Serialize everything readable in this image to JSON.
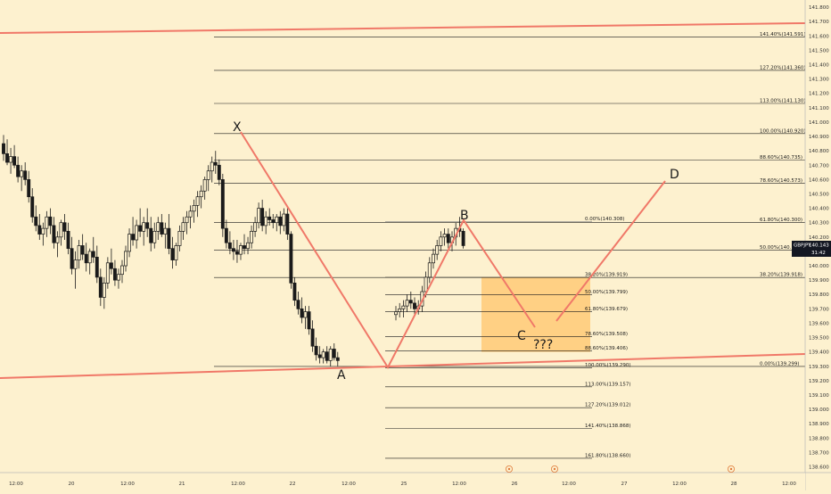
{
  "chart_data": {
    "type": "candlestick",
    "symbol": "GBPJPY",
    "price": {
      "label": "GBPJPY",
      "value": "140.143",
      "countdown": "31:42"
    },
    "y_axis": {
      "min": 138.56,
      "max": 141.85,
      "ticks": [
        "141.800",
        "141.700",
        "141.600",
        "141.500",
        "141.400",
        "141.300",
        "141.200",
        "141.100",
        "141.000",
        "140.900",
        "140.800",
        "140.700",
        "140.600",
        "140.500",
        "140.400",
        "140.300",
        "140.200",
        "140.100",
        "140.000",
        "139.900",
        "139.800",
        "139.700",
        "139.600",
        "139.500",
        "139.400",
        "139.300",
        "139.200",
        "139.100",
        "139.000",
        "138.900",
        "138.800",
        "138.700",
        "138.600"
      ]
    },
    "x_axis": {
      "labels": [
        "12:00",
        "20",
        "12:00",
        "21",
        "12:00",
        "22",
        "12:00",
        "25",
        "12:00",
        "26",
        "12:00",
        "27",
        "12:00",
        "28",
        "12:00"
      ]
    },
    "candles": [
      {
        "o": 140.85,
        "h": 140.91,
        "l": 140.73,
        "c": 140.78
      },
      {
        "o": 140.78,
        "h": 140.88,
        "l": 140.7,
        "c": 140.72
      },
      {
        "o": 140.72,
        "h": 140.82,
        "l": 140.64,
        "c": 140.76
      },
      {
        "o": 140.76,
        "h": 140.84,
        "l": 140.68,
        "c": 140.7
      },
      {
        "o": 140.7,
        "h": 140.76,
        "l": 140.58,
        "c": 140.62
      },
      {
        "o": 140.62,
        "h": 140.7,
        "l": 140.52,
        "c": 140.66
      },
      {
        "o": 140.66,
        "h": 140.72,
        "l": 140.56,
        "c": 140.6
      },
      {
        "o": 140.6,
        "h": 140.66,
        "l": 140.44,
        "c": 140.48
      },
      {
        "o": 140.48,
        "h": 140.54,
        "l": 140.3,
        "c": 140.34
      },
      {
        "o": 140.34,
        "h": 140.42,
        "l": 140.24,
        "c": 140.28
      },
      {
        "o": 140.28,
        "h": 140.36,
        "l": 140.18,
        "c": 140.22
      },
      {
        "o": 140.22,
        "h": 140.3,
        "l": 140.14,
        "c": 140.26
      },
      {
        "o": 140.26,
        "h": 140.38,
        "l": 140.2,
        "c": 140.34
      },
      {
        "o": 140.34,
        "h": 140.4,
        "l": 140.22,
        "c": 140.28
      },
      {
        "o": 140.28,
        "h": 140.34,
        "l": 140.12,
        "c": 140.16
      },
      {
        "o": 140.16,
        "h": 140.24,
        "l": 140.06,
        "c": 140.2
      },
      {
        "o": 140.2,
        "h": 140.32,
        "l": 140.14,
        "c": 140.3
      },
      {
        "o": 140.3,
        "h": 140.36,
        "l": 140.18,
        "c": 140.24
      },
      {
        "o": 140.24,
        "h": 140.3,
        "l": 140.08,
        "c": 140.12
      },
      {
        "o": 140.12,
        "h": 140.2,
        "l": 139.94,
        "c": 139.98
      },
      {
        "o": 139.98,
        "h": 140.1,
        "l": 139.84,
        "c": 140.04
      },
      {
        "o": 140.04,
        "h": 140.18,
        "l": 139.98,
        "c": 140.14
      },
      {
        "o": 140.14,
        "h": 140.22,
        "l": 140.04,
        "c": 140.08
      },
      {
        "o": 140.08,
        "h": 140.16,
        "l": 139.96,
        "c": 140.02
      },
      {
        "o": 140.02,
        "h": 140.12,
        "l": 139.94,
        "c": 140.1
      },
      {
        "o": 140.1,
        "h": 140.2,
        "l": 140.02,
        "c": 140.06
      },
      {
        "o": 140.06,
        "h": 140.14,
        "l": 139.88,
        "c": 139.92
      },
      {
        "o": 139.92,
        "h": 139.98,
        "l": 139.72,
        "c": 139.78
      },
      {
        "o": 139.78,
        "h": 139.92,
        "l": 139.7,
        "c": 139.88
      },
      {
        "o": 139.88,
        "h": 140.06,
        "l": 139.84,
        "c": 140.02
      },
      {
        "o": 140.02,
        "h": 140.12,
        "l": 139.94,
        "c": 139.98
      },
      {
        "o": 139.98,
        "h": 140.04,
        "l": 139.86,
        "c": 139.9
      },
      {
        "o": 139.9,
        "h": 139.98,
        "l": 139.84,
        "c": 139.94
      },
      {
        "o": 139.94,
        "h": 140.04,
        "l": 139.88,
        "c": 140.0
      },
      {
        "o": 140.0,
        "h": 140.14,
        "l": 139.96,
        "c": 140.1
      },
      {
        "o": 140.1,
        "h": 140.26,
        "l": 140.06,
        "c": 140.22
      },
      {
        "o": 140.22,
        "h": 140.34,
        "l": 140.14,
        "c": 140.18
      },
      {
        "o": 140.18,
        "h": 140.32,
        "l": 140.12,
        "c": 140.28
      },
      {
        "o": 140.28,
        "h": 140.4,
        "l": 140.2,
        "c": 140.24
      },
      {
        "o": 140.24,
        "h": 140.34,
        "l": 140.14,
        "c": 140.3
      },
      {
        "o": 140.3,
        "h": 140.4,
        "l": 140.2,
        "c": 140.26
      },
      {
        "o": 140.26,
        "h": 140.34,
        "l": 140.1,
        "c": 140.16
      },
      {
        "o": 140.16,
        "h": 140.3,
        "l": 140.12,
        "c": 140.24
      },
      {
        "o": 140.24,
        "h": 140.34,
        "l": 140.18,
        "c": 140.3
      },
      {
        "o": 140.3,
        "h": 140.36,
        "l": 140.2,
        "c": 140.22
      },
      {
        "o": 140.22,
        "h": 140.3,
        "l": 140.12,
        "c": 140.26
      },
      {
        "o": 140.26,
        "h": 140.36,
        "l": 140.08,
        "c": 140.12
      },
      {
        "o": 140.12,
        "h": 140.2,
        "l": 139.98,
        "c": 140.04
      },
      {
        "o": 140.04,
        "h": 140.16,
        "l": 140.0,
        "c": 140.14
      },
      {
        "o": 140.14,
        "h": 140.28,
        "l": 140.1,
        "c": 140.24
      },
      {
        "o": 140.24,
        "h": 140.34,
        "l": 140.18,
        "c": 140.3
      },
      {
        "o": 140.3,
        "h": 140.38,
        "l": 140.22,
        "c": 140.34
      },
      {
        "o": 140.34,
        "h": 140.42,
        "l": 140.26,
        "c": 140.38
      },
      {
        "o": 140.38,
        "h": 140.46,
        "l": 140.3,
        "c": 140.42
      },
      {
        "o": 140.42,
        "h": 140.52,
        "l": 140.34,
        "c": 140.48
      },
      {
        "o": 140.48,
        "h": 140.56,
        "l": 140.4,
        "c": 140.52
      },
      {
        "o": 140.52,
        "h": 140.62,
        "l": 140.46,
        "c": 140.6
      },
      {
        "o": 140.6,
        "h": 140.7,
        "l": 140.52,
        "c": 140.66
      },
      {
        "o": 140.66,
        "h": 140.76,
        "l": 140.58,
        "c": 140.72
      },
      {
        "o": 140.72,
        "h": 140.8,
        "l": 140.64,
        "c": 140.7
      },
      {
        "o": 140.7,
        "h": 140.74,
        "l": 140.56,
        "c": 140.6
      },
      {
        "o": 140.6,
        "h": 140.64,
        "l": 140.2,
        "c": 140.26
      },
      {
        "o": 140.26,
        "h": 140.32,
        "l": 140.12,
        "c": 140.16
      },
      {
        "o": 140.16,
        "h": 140.24,
        "l": 140.08,
        "c": 140.12
      },
      {
        "o": 140.12,
        "h": 140.18,
        "l": 140.04,
        "c": 140.1
      },
      {
        "o": 140.1,
        "h": 140.18,
        "l": 140.02,
        "c": 140.08
      },
      {
        "o": 140.08,
        "h": 140.16,
        "l": 140.04,
        "c": 140.14
      },
      {
        "o": 140.14,
        "h": 140.22,
        "l": 140.08,
        "c": 140.12
      },
      {
        "o": 140.12,
        "h": 140.2,
        "l": 140.08,
        "c": 140.16
      },
      {
        "o": 140.16,
        "h": 140.28,
        "l": 140.12,
        "c": 140.24
      },
      {
        "o": 140.24,
        "h": 140.34,
        "l": 140.2,
        "c": 140.3
      },
      {
        "o": 140.3,
        "h": 140.44,
        "l": 140.26,
        "c": 140.4
      },
      {
        "o": 140.4,
        "h": 140.46,
        "l": 140.24,
        "c": 140.28
      },
      {
        "o": 140.28,
        "h": 140.38,
        "l": 140.22,
        "c": 140.34
      },
      {
        "o": 140.34,
        "h": 140.4,
        "l": 140.28,
        "c": 140.32
      },
      {
        "o": 140.32,
        "h": 140.36,
        "l": 140.26,
        "c": 140.3
      },
      {
        "o": 140.3,
        "h": 140.36,
        "l": 140.24,
        "c": 140.34
      },
      {
        "o": 140.34,
        "h": 140.38,
        "l": 140.22,
        "c": 140.28
      },
      {
        "o": 140.28,
        "h": 140.4,
        "l": 140.24,
        "c": 140.36
      },
      {
        "o": 140.36,
        "h": 140.4,
        "l": 140.18,
        "c": 140.22
      },
      {
        "o": 140.22,
        "h": 140.24,
        "l": 139.84,
        "c": 139.88
      },
      {
        "o": 139.88,
        "h": 139.92,
        "l": 139.72,
        "c": 139.76
      },
      {
        "o": 139.76,
        "h": 139.82,
        "l": 139.66,
        "c": 139.7
      },
      {
        "o": 139.7,
        "h": 139.78,
        "l": 139.6,
        "c": 139.64
      },
      {
        "o": 139.64,
        "h": 139.72,
        "l": 139.56,
        "c": 139.68
      },
      {
        "o": 139.68,
        "h": 139.72,
        "l": 139.52,
        "c": 139.56
      },
      {
        "o": 139.56,
        "h": 139.62,
        "l": 139.4,
        "c": 139.44
      },
      {
        "o": 139.44,
        "h": 139.5,
        "l": 139.34,
        "c": 139.38
      },
      {
        "o": 139.38,
        "h": 139.44,
        "l": 139.32,
        "c": 139.36
      },
      {
        "o": 139.36,
        "h": 139.42,
        "l": 139.32,
        "c": 139.4
      },
      {
        "o": 139.4,
        "h": 139.44,
        "l": 139.32,
        "c": 139.34
      },
      {
        "o": 139.34,
        "h": 139.44,
        "l": 139.3,
        "c": 139.42
      },
      {
        "o": 139.42,
        "h": 139.46,
        "l": 139.34,
        "c": 139.36
      },
      {
        "o": 139.36,
        "h": 139.4,
        "l": 139.3,
        "c": 139.34
      },
      {
        "o": 139.66,
        "h": 139.72,
        "l": 139.62,
        "c": 139.68
      },
      {
        "o": 139.68,
        "h": 139.74,
        "l": 139.64,
        "c": 139.7
      },
      {
        "o": 139.7,
        "h": 139.76,
        "l": 139.64,
        "c": 139.72
      },
      {
        "o": 139.72,
        "h": 139.8,
        "l": 139.68,
        "c": 139.76
      },
      {
        "o": 139.76,
        "h": 139.82,
        "l": 139.7,
        "c": 139.74
      },
      {
        "o": 139.74,
        "h": 139.78,
        "l": 139.66,
        "c": 139.7
      },
      {
        "o": 139.7,
        "h": 139.76,
        "l": 139.66,
        "c": 139.72
      },
      {
        "o": 139.72,
        "h": 139.86,
        "l": 139.68,
        "c": 139.82
      },
      {
        "o": 139.82,
        "h": 139.96,
        "l": 139.78,
        "c": 139.92
      },
      {
        "o": 139.92,
        "h": 140.06,
        "l": 139.88,
        "c": 140.02
      },
      {
        "o": 140.02,
        "h": 140.12,
        "l": 139.98,
        "c": 140.08
      },
      {
        "o": 140.08,
        "h": 140.18,
        "l": 140.04,
        "c": 140.14
      },
      {
        "o": 140.14,
        "h": 140.24,
        "l": 140.1,
        "c": 140.2
      },
      {
        "o": 140.2,
        "h": 140.26,
        "l": 140.14,
        "c": 140.22
      },
      {
        "o": 140.22,
        "h": 140.26,
        "l": 140.12,
        "c": 140.16
      },
      {
        "o": 140.16,
        "h": 140.24,
        "l": 140.1,
        "c": 140.2
      },
      {
        "o": 140.2,
        "h": 140.3,
        "l": 140.14,
        "c": 140.26
      },
      {
        "o": 140.26,
        "h": 140.34,
        "l": 140.2,
        "c": 140.24
      },
      {
        "o": 140.24,
        "h": 140.26,
        "l": 140.12,
        "c": 140.14
      }
    ],
    "lines": [
      {
        "name": "141.40%",
        "value": 141.591,
        "label": "141.40%(141.591)"
      },
      {
        "name": "127.20%",
        "value": 141.36,
        "label": "127.20%(141.360)"
      },
      {
        "name": "113.00%",
        "value": 141.13,
        "label": "113.00%(141.130)"
      },
      {
        "name": "100.00%",
        "value": 140.92,
        "label": "100.00%(140.920)"
      },
      {
        "name": "88.60%",
        "value": 140.735,
        "label": "88.60%(140.735)"
      },
      {
        "name": "78.60%",
        "value": 140.573,
        "label": "78.60%(140.573)"
      },
      {
        "name": "61.80%",
        "value": 140.3,
        "label": "61.80%(140.300)"
      },
      {
        "name": "50.00%",
        "value": 140.109,
        "label": "50.00%(140.109)"
      },
      {
        "name": "38.20%",
        "value": 139.918,
        "label": "38.20%(139.918)"
      },
      {
        "name": "0.00%",
        "value": 139.299,
        "label": "0.00%(139.299)"
      }
    ],
    "fib_ab_levels": [
      {
        "value": 140.308,
        "label": "0.00%(140.308)"
      },
      {
        "value": 139.919,
        "label": "38.20%(139.919)"
      },
      {
        "value": 139.799,
        "label": "50.00%(139.799)"
      },
      {
        "value": 139.679,
        "label": "61.80%(139.679)"
      },
      {
        "value": 139.508,
        "label": "78.60%(139.508)"
      },
      {
        "value": 139.406,
        "label": "88.60%(139.406)"
      },
      {
        "value": 139.29,
        "label": "100.00%(139.290)"
      },
      {
        "value": 139.157,
        "label": "113.00%(139.157)"
      },
      {
        "value": 139.012,
        "label": "127.20%(139.012)"
      },
      {
        "value": 138.868,
        "label": "141.40%(138.868)"
      },
      {
        "value": 138.66,
        "label": "161.80%(138.660)"
      }
    ],
    "pattern_points": [
      {
        "label": "X",
        "price": 140.92
      },
      {
        "label": "A",
        "price": 139.29
      },
      {
        "label": "B",
        "price": 140.31
      },
      {
        "label": "C",
        "price": 139.58
      },
      {
        "label": "???",
        "price": 139.58
      },
      {
        "label": "D",
        "price": 140.58
      }
    ],
    "zone": {
      "low": 139.4,
      "high": 139.92
    },
    "colors": {
      "background": "#fdf1cf",
      "pattern_line": "#f07868",
      "zone": "#ffc46b",
      "candle": "#1a1a1a",
      "price_tag": "#131722"
    }
  }
}
